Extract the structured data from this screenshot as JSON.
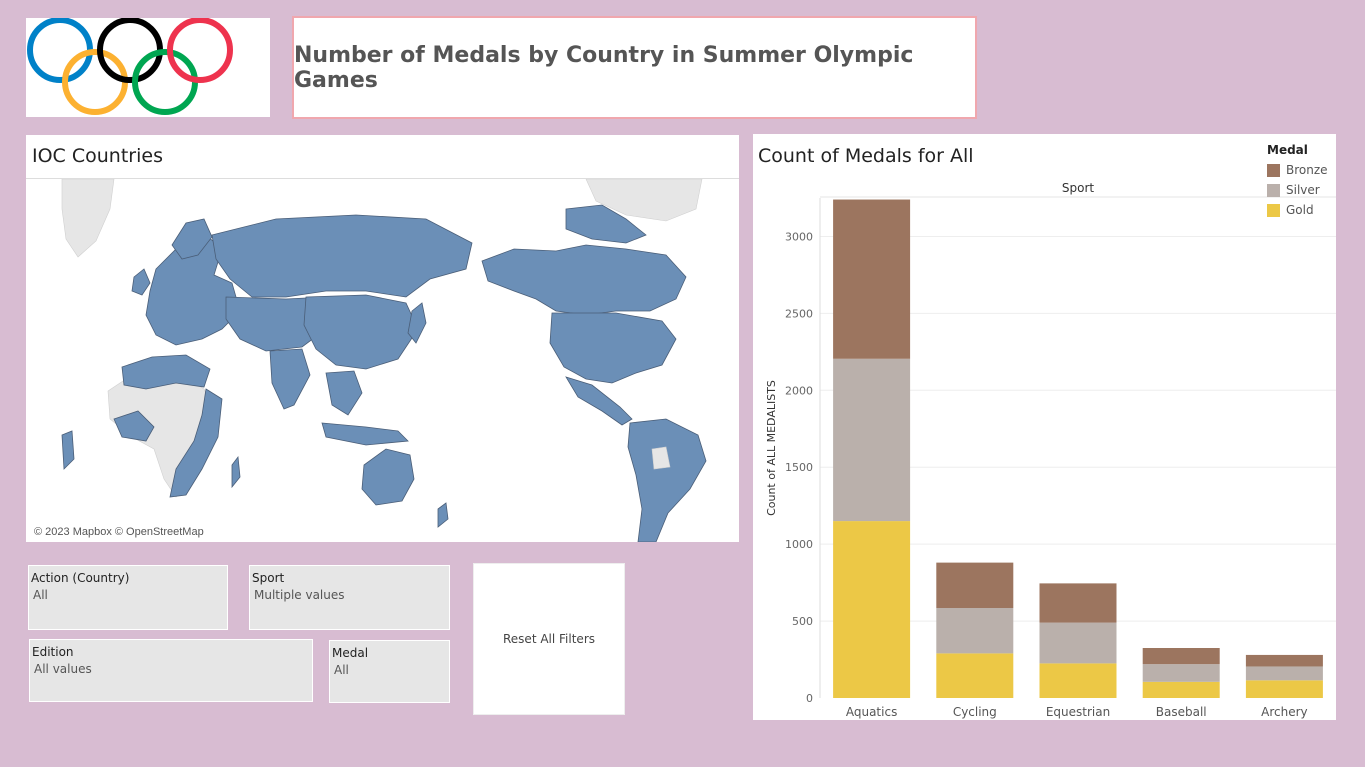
{
  "title": "Number of Medals by Country in Summer Olympic Games",
  "logo": {
    "rings": [
      "#0081c8",
      "#fcb131",
      "#000000",
      "#00a651",
      "#ee334e"
    ]
  },
  "map": {
    "title": "IOC Countries",
    "attribution": "© 2023 Mapbox © OpenStreetMap",
    "colors": {
      "ioc": "#6b8fb7",
      "other": "#e6e6e6",
      "border": "#4a5e78"
    }
  },
  "filters": {
    "country": {
      "label": "Action (Country)",
      "value": "All"
    },
    "sport": {
      "label": "Sport",
      "value": "Multiple values"
    },
    "edition": {
      "label": "Edition",
      "value": "All values"
    },
    "medal": {
      "label": "Medal",
      "value": "All"
    }
  },
  "reset_label": "Reset All Filters",
  "chart_data": {
    "type": "bar",
    "stacked": true,
    "title": "Count of Medals for All",
    "header": "Sport",
    "ylabel": "Count of ALL MEDALISTS",
    "ylim": [
      0,
      3250
    ],
    "yticks": [
      0,
      500,
      1000,
      1500,
      2000,
      2500,
      3000
    ],
    "categories": [
      "Aquatics",
      "Cycling",
      "Equestrian",
      "Baseball",
      "Archery"
    ],
    "legend_title": "Medal",
    "series": [
      {
        "name": "Gold",
        "color": "#ecc846",
        "values": [
          1150,
          290,
          225,
          105,
          115
        ]
      },
      {
        "name": "Silver",
        "color": "#bab0ab",
        "values": [
          1055,
          295,
          265,
          115,
          90
        ]
      },
      {
        "name": "Bronze",
        "color": "#9c755f",
        "values": [
          1035,
          295,
          255,
          105,
          75
        ]
      }
    ]
  }
}
